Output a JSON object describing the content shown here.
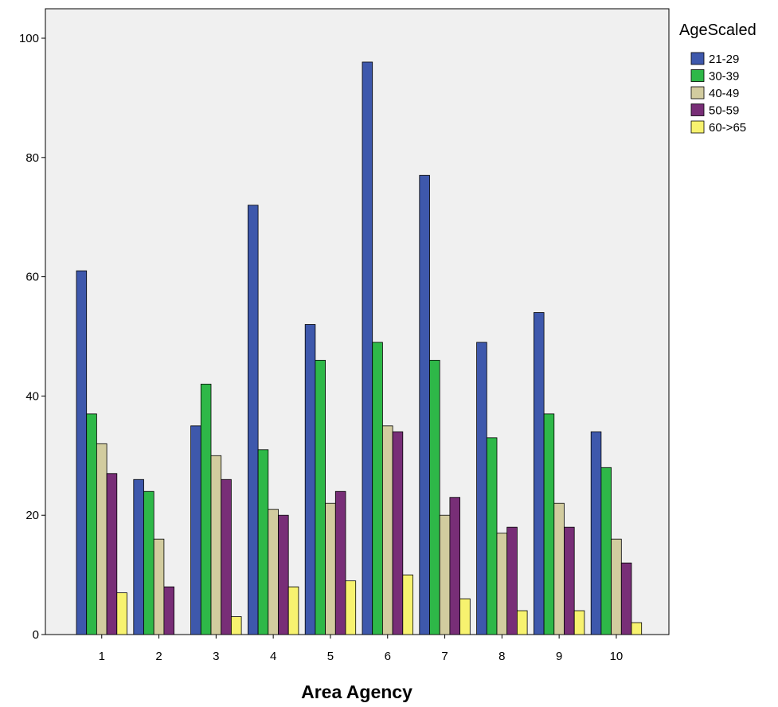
{
  "colors": {
    "plot_background": "#f0f0f0",
    "series": [
      "#3e58ac",
      "#2eb848",
      "#d2cc9f",
      "#782e77",
      "#f7f26f"
    ]
  },
  "chart_data": {
    "type": "bar",
    "title": "",
    "xlabel": "Area Agency",
    "ylabel": "",
    "categories": [
      "1",
      "2",
      "3",
      "4",
      "5",
      "6",
      "7",
      "8",
      "9",
      "10"
    ],
    "ylim": [
      0,
      105
    ],
    "yticks": [
      0,
      20,
      40,
      60,
      80,
      100
    ],
    "grid": false,
    "legend": {
      "title": "AgeScaled",
      "position": "top-right, outside plot"
    },
    "series": [
      {
        "name": "21-29",
        "values": [
          61,
          26,
          35,
          72,
          52,
          96,
          77,
          49,
          54,
          34
        ]
      },
      {
        "name": "30-39",
        "values": [
          37,
          24,
          42,
          31,
          46,
          49,
          46,
          33,
          37,
          28
        ]
      },
      {
        "name": "40-49",
        "values": [
          32,
          16,
          30,
          21,
          22,
          35,
          20,
          17,
          22,
          16
        ]
      },
      {
        "name": "50-59",
        "values": [
          27,
          8,
          26,
          20,
          24,
          34,
          23,
          18,
          18,
          12
        ]
      },
      {
        "name": "60->65",
        "values": [
          7,
          0,
          3,
          8,
          9,
          10,
          6,
          4,
          4,
          2
        ]
      }
    ]
  }
}
